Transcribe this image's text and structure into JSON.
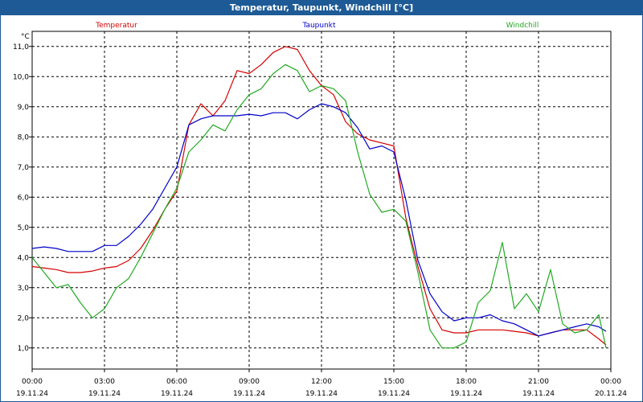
{
  "window": {
    "title": "Temperatur, Taupunkt, Windchill [°C]"
  },
  "colors": {
    "titlebar": "#1d5a96",
    "temperatur": "#d40000",
    "taupunkt": "#0000cc",
    "windchill": "#22aa22",
    "grid": "#000000"
  },
  "chart_data": {
    "type": "line",
    "title": "Temperatur, Taupunkt, Windchill [°C]",
    "ylabel": "°C",
    "xlabel": "",
    "ylim": [
      0.3,
      11.5
    ],
    "xlim": [
      0,
      24
    ],
    "grid": true,
    "legend_position": "top",
    "y_ticks": [
      "1,0",
      "2,0",
      "3,0",
      "4,0",
      "5,0",
      "6,0",
      "7,0",
      "8,0",
      "9,0",
      "10,0",
      "11,0"
    ],
    "x_ticks": [
      {
        "time": "00:00",
        "date": "19.11.24"
      },
      {
        "time": "03:00",
        "date": "19.11.24"
      },
      {
        "time": "06:00",
        "date": "19.11.24"
      },
      {
        "time": "09:00",
        "date": "19.11.24"
      },
      {
        "time": "12:00",
        "date": "19.11.24"
      },
      {
        "time": "15:00",
        "date": "19.11.24"
      },
      {
        "time": "18:00",
        "date": "19.11.24"
      },
      {
        "time": "21:00",
        "date": "19.11.24"
      },
      {
        "time": "00:00",
        "date": "20.11.24"
      }
    ],
    "x_hours": [
      0,
      0.5,
      1,
      1.5,
      2,
      2.5,
      3,
      3.5,
      4,
      4.5,
      5,
      5.5,
      6,
      6.5,
      7,
      7.5,
      8,
      8.5,
      9,
      9.5,
      10,
      10.5,
      11,
      11.5,
      12,
      12.5,
      13,
      13.5,
      14,
      14.5,
      15,
      15.5,
      16,
      16.5,
      17,
      17.5,
      18,
      18.5,
      19,
      19.5,
      20,
      20.5,
      21,
      21.5,
      22,
      22.5,
      23,
      23.5,
      23.8
    ],
    "series": [
      {
        "name": "Temperatur",
        "color": "#d40000",
        "values": [
          3.7,
          3.65,
          3.6,
          3.5,
          3.5,
          3.55,
          3.65,
          3.7,
          3.9,
          4.3,
          4.9,
          5.6,
          6.2,
          8.4,
          9.1,
          8.7,
          9.2,
          10.2,
          10.1,
          10.4,
          10.8,
          11.0,
          10.9,
          10.2,
          9.7,
          9.4,
          8.5,
          8.1,
          7.9,
          7.8,
          7.7,
          5.3,
          3.7,
          2.3,
          1.6,
          1.5,
          1.5,
          1.6,
          1.6,
          1.6,
          1.55,
          1.5,
          1.4,
          1.5,
          1.6,
          1.6,
          1.6,
          1.3,
          1.1
        ]
      },
      {
        "name": "Taupunkt",
        "color": "#0000cc",
        "values": [
          4.3,
          4.35,
          4.3,
          4.2,
          4.2,
          4.2,
          4.4,
          4.4,
          4.7,
          5.1,
          5.6,
          6.3,
          7.0,
          8.4,
          8.6,
          8.7,
          8.7,
          8.7,
          8.75,
          8.7,
          8.8,
          8.8,
          8.6,
          8.9,
          9.1,
          9.0,
          8.8,
          8.3,
          7.6,
          7.7,
          7.5,
          5.9,
          3.9,
          2.8,
          2.2,
          1.9,
          2.0,
          2.0,
          2.1,
          1.9,
          1.8,
          1.6,
          1.4,
          1.5,
          1.6,
          1.7,
          1.8,
          1.7,
          1.55
        ]
      },
      {
        "name": "Windchill",
        "color": "#22aa22",
        "values": [
          4.0,
          3.5,
          3.0,
          3.1,
          2.5,
          2.0,
          2.3,
          3.0,
          3.3,
          4.0,
          4.8,
          5.6,
          6.3,
          7.5,
          7.9,
          8.4,
          8.2,
          8.9,
          9.4,
          9.6,
          10.1,
          10.4,
          10.2,
          9.5,
          9.7,
          9.6,
          9.2,
          7.5,
          6.1,
          5.5,
          5.6,
          5.2,
          3.5,
          1.6,
          1.0,
          1.0,
          1.2,
          2.5,
          2.9,
          4.5,
          2.3,
          2.8,
          2.2,
          3.6,
          1.8,
          1.5,
          1.6,
          2.1,
          1.0
        ]
      }
    ]
  }
}
